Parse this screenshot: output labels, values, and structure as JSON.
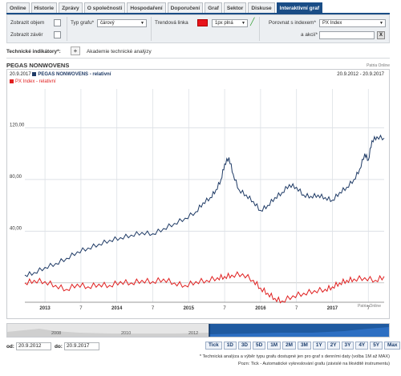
{
  "tabs": [
    "Online",
    "Historie",
    "Zprávy",
    "O společnosti",
    "Hospodaření",
    "Doporučení",
    "Graf",
    "Sektor",
    "Diskuse",
    "Interaktivní graf"
  ],
  "active_tab": 9,
  "controls": {
    "show_volume": "Zobrazit objem",
    "show_close": "Zobrazit závěr",
    "chart_type_label": "Typ grafu*",
    "chart_type_value": "čárový",
    "trend_label": "Trendová linka",
    "trend_color": "#e8141b",
    "trend_style": "1px plná",
    "compare_label": "Porovnat s indexem*",
    "compare_value": "PX Index",
    "stock_label": "a akcií*",
    "stock_value": "",
    "clear_btn": "X"
  },
  "indicators": {
    "label": "Technické indikátory*:",
    "add_btn": "+",
    "academy": "Akademie technické analýzy"
  },
  "chart_title": "PEGAS NONWOVENS",
  "watermark_top": "Patria Online",
  "watermark_bottom": "Patria Online",
  "chart_header": {
    "date": "20.9.2017",
    "series1_label": "PEGAS NONWOVENS - relativní",
    "series2_label": "PX Index - relativní",
    "range": "20.9.2012 - 20.9.2017"
  },
  "colors": {
    "series1": "#1f3b66",
    "series2": "#e02020",
    "grid": "#dde1e6",
    "nav": "#1f5aa0"
  },
  "chart_data": {
    "type": "line",
    "y_ticks": [
      "120,00",
      "80,00",
      "40,00"
    ],
    "x_ticks": [
      "2013",
      "7",
      "2014",
      "7",
      "2015",
      "7",
      "2016",
      "7",
      "2017",
      "7"
    ],
    "ylim": [
      0,
      150
    ],
    "series": [
      {
        "name": "PEGAS NONWOVENS - relativní",
        "x": [
          2012.72,
          2012.85,
          2013.0,
          2013.15,
          2013.3,
          2013.45,
          2013.6,
          2013.75,
          2013.9,
          2014.05,
          2014.2,
          2014.35,
          2014.5,
          2014.65,
          2014.8,
          2014.95,
          2015.1,
          2015.2,
          2015.3,
          2015.38,
          2015.45,
          2015.5,
          2015.56,
          2015.62,
          2015.7,
          2015.8,
          2015.9,
          2016.0,
          2016.1,
          2016.2,
          2016.3,
          2016.4,
          2016.5,
          2016.6,
          2016.7,
          2016.8,
          2016.9,
          2017.0,
          2017.1,
          2017.2,
          2017.3,
          2017.38,
          2017.45,
          2017.5,
          2017.55,
          2017.62,
          2017.72
        ],
        "y": [
          6,
          8,
          12,
          15,
          19,
          24,
          27,
          30,
          33,
          35,
          37,
          39,
          38,
          42,
          46,
          50,
          55,
          62,
          66,
          72,
          80,
          92,
          97,
          84,
          72,
          68,
          63,
          56,
          60,
          66,
          70,
          76,
          74,
          68,
          67,
          68,
          66,
          64,
          70,
          74,
          80,
          88,
          100,
          95,
          110,
          113,
          112
        ]
      },
      {
        "name": "PX Index - relativní",
        "x": [
          2012.72,
          2012.85,
          2013.0,
          2013.15,
          2013.3,
          2013.45,
          2013.6,
          2013.75,
          2013.9,
          2014.05,
          2014.2,
          2014.35,
          2014.5,
          2014.65,
          2014.8,
          2014.95,
          2015.1,
          2015.25,
          2015.4,
          2015.5,
          2015.6,
          2015.75,
          2015.9,
          2016.0,
          2016.1,
          2016.2,
          2016.3,
          2016.45,
          2016.6,
          2016.75,
          2016.9,
          2017.0,
          2017.1,
          2017.2,
          2017.3,
          2017.45,
          2017.6,
          2017.72
        ],
        "y": [
          0,
          2,
          1,
          -2,
          -5,
          -1,
          -3,
          -1,
          -2,
          1,
          0,
          2,
          1,
          3,
          0,
          -2,
          1,
          2,
          4,
          5,
          6,
          7,
          2,
          -4,
          -8,
          -12,
          -14,
          -10,
          -8,
          -6,
          -5,
          -3,
          0,
          2,
          3,
          4,
          2,
          5
        ]
      }
    ]
  },
  "navigator": {
    "labels": [
      "2008",
      "2010",
      "2012"
    ]
  },
  "periods": [
    "Tick",
    "1D",
    "3D",
    "5D",
    "1M",
    "2M",
    "3M",
    "1Y",
    "2Y",
    "3Y",
    "4Y",
    "5Y",
    "Max"
  ],
  "dates": {
    "from_label": "od:",
    "from_value": "20.9.2012",
    "to_label": "do:",
    "to_value": "20.9.2017"
  },
  "notes": [
    "* Technická analýza a výběr typu grafu dostupné jen pro graf s denními daty (volba 1M až MAX)",
    "Pozn: Tick - Automatické vykreslování grafu (závislé na likviditě instrumentu)"
  ]
}
